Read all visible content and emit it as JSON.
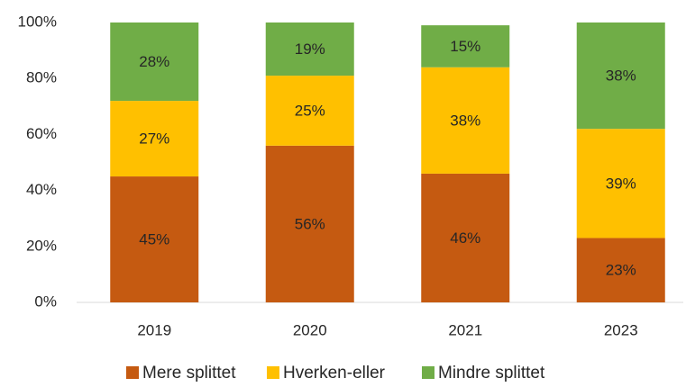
{
  "chart_data": {
    "type": "stacked_bar",
    "categories": [
      "2019",
      "2020",
      "2021",
      "2023"
    ],
    "series": [
      {
        "name": "Mere splittet",
        "color": "#C55A11",
        "values": [
          45,
          56,
          46,
          23
        ],
        "value_labels": [
          "45%",
          "56%",
          "46%",
          "23%"
        ]
      },
      {
        "name": "Hverken-eller",
        "color": "#FFC000",
        "values": [
          27,
          25,
          38,
          39
        ],
        "value_labels": [
          "27%",
          "25%",
          "38%",
          "39%"
        ]
      },
      {
        "name": "Mindre splittet",
        "color": "#70AD47",
        "values": [
          28,
          19,
          15,
          38
        ],
        "value_labels": [
          "28%",
          "19%",
          "15%",
          "38%"
        ]
      }
    ],
    "ylim": [
      0,
      100
    ],
    "yticks": [
      {
        "value": 0,
        "label": "0%"
      },
      {
        "value": 20,
        "label": "20%"
      },
      {
        "value": 40,
        "label": "40%"
      },
      {
        "value": 60,
        "label": "60%"
      },
      {
        "value": 80,
        "label": "80%"
      },
      {
        "value": 100,
        "label": "100%"
      }
    ],
    "legend": "bottom"
  }
}
